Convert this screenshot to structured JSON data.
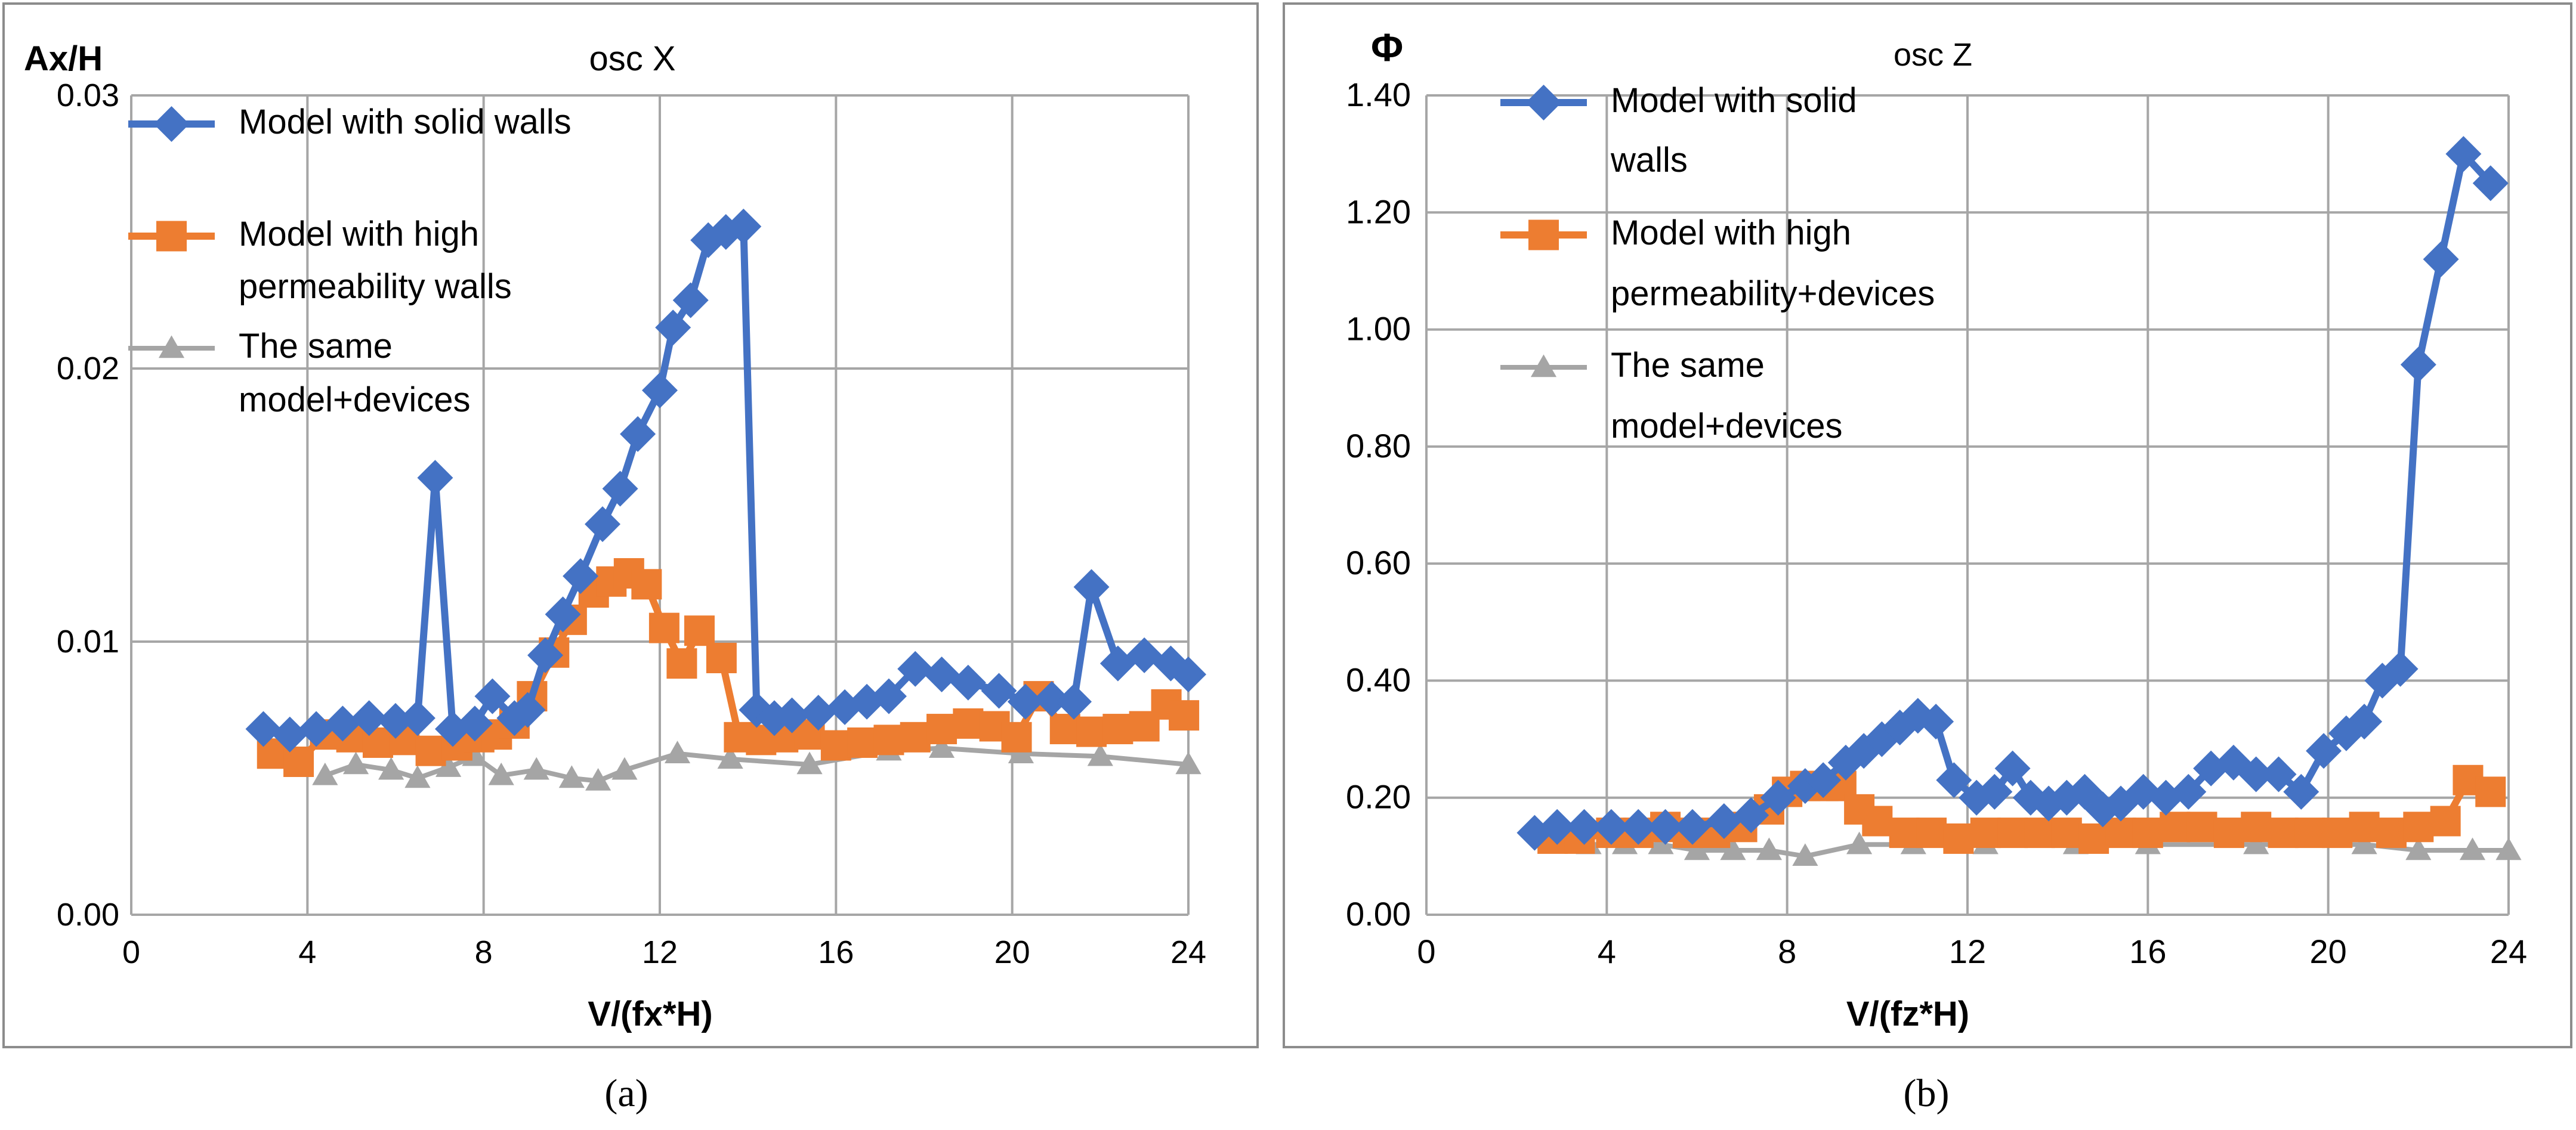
{
  "figure": {
    "label_a": "(a)",
    "label_b": "(b)"
  },
  "colors": {
    "solid": "#4472C4",
    "high": "#ED7D31",
    "same": "#A5A5A5",
    "grid": "#A6A6A6",
    "frame": "#8C8C8C",
    "text": "#000000"
  },
  "chart_data": [
    {
      "type": "line",
      "title": "osc X",
      "xlabel": "V/(fx*H)",
      "ylabel": "Ax/H",
      "xlim": [
        0,
        24
      ],
      "ylim": [
        0,
        0.03
      ],
      "xticks": [
        0,
        4,
        8,
        12,
        16,
        20,
        24
      ],
      "xtick_labels": [
        "0",
        "4",
        "8",
        "12",
        "16",
        "20",
        "24"
      ],
      "yticks": [
        0,
        0.01,
        0.02,
        0.03
      ],
      "ytick_labels": [
        "0.00",
        "0.01",
        "0.02",
        "0.03"
      ],
      "grid": true,
      "legend": "top-left",
      "series": [
        {
          "name": "Model with solid walls",
          "legend_lines": [
            "Model with solid walls"
          ],
          "marker": "diamond",
          "color": "#4472C4",
          "points": [
            [
              3.0,
              0.0068
            ],
            [
              3.6,
              0.0066
            ],
            [
              4.2,
              0.0068
            ],
            [
              4.8,
              0.007
            ],
            [
              5.4,
              0.0072
            ],
            [
              6.0,
              0.0071
            ],
            [
              6.5,
              0.0072
            ],
            [
              6.9,
              0.016
            ],
            [
              7.3,
              0.0068
            ],
            [
              7.8,
              0.007
            ],
            [
              8.2,
              0.008
            ],
            [
              8.7,
              0.0072
            ],
            [
              9.0,
              0.0075
            ],
            [
              9.4,
              0.0095
            ],
            [
              9.8,
              0.011
            ],
            [
              10.2,
              0.0124
            ],
            [
              10.7,
              0.0143
            ],
            [
              11.1,
              0.0156
            ],
            [
              11.5,
              0.0176
            ],
            [
              12.0,
              0.0192
            ],
            [
              12.3,
              0.0215
            ],
            [
              12.7,
              0.0225
            ],
            [
              13.1,
              0.0247
            ],
            [
              13.5,
              0.025
            ],
            [
              13.9,
              0.0252
            ],
            [
              14.2,
              0.0075
            ],
            [
              14.6,
              0.0072
            ],
            [
              15.0,
              0.0073
            ],
            [
              15.6,
              0.0074
            ],
            [
              16.2,
              0.0076
            ],
            [
              16.7,
              0.0078
            ],
            [
              17.2,
              0.008
            ],
            [
              17.8,
              0.009
            ],
            [
              18.4,
              0.0088
            ],
            [
              19.0,
              0.0085
            ],
            [
              19.7,
              0.0082
            ],
            [
              20.3,
              0.0078
            ],
            [
              20.9,
              0.0079
            ],
            [
              21.4,
              0.0078
            ],
            [
              21.8,
              0.012
            ],
            [
              22.4,
              0.0092
            ],
            [
              23.0,
              0.0095
            ],
            [
              23.6,
              0.0092
            ],
            [
              24.0,
              0.0088
            ]
          ]
        },
        {
          "name": "Model with high permeability walls",
          "legend_lines": [
            "Model with high",
            "permeability walls"
          ],
          "marker": "square",
          "color": "#ED7D31",
          "points": [
            [
              3.2,
              0.0059
            ],
            [
              3.8,
              0.0056
            ],
            [
              4.4,
              0.0066
            ],
            [
              5.0,
              0.0065
            ],
            [
              5.6,
              0.0063
            ],
            [
              6.2,
              0.0064
            ],
            [
              6.8,
              0.006
            ],
            [
              7.4,
              0.0062
            ],
            [
              7.9,
              0.0065
            ],
            [
              8.3,
              0.0066
            ],
            [
              8.7,
              0.007
            ],
            [
              9.1,
              0.008
            ],
            [
              9.6,
              0.0096
            ],
            [
              10.0,
              0.0108
            ],
            [
              10.5,
              0.0118
            ],
            [
              10.9,
              0.0122
            ],
            [
              11.3,
              0.0125
            ],
            [
              11.7,
              0.0121
            ],
            [
              12.1,
              0.0105
            ],
            [
              12.5,
              0.0092
            ],
            [
              12.9,
              0.0104
            ],
            [
              13.4,
              0.0094
            ],
            [
              13.8,
              0.0065
            ],
            [
              14.3,
              0.0064
            ],
            [
              14.8,
              0.0065
            ],
            [
              15.4,
              0.0066
            ],
            [
              16.0,
              0.0062
            ],
            [
              16.6,
              0.0063
            ],
            [
              17.2,
              0.0064
            ],
            [
              17.8,
              0.0065
            ],
            [
              18.4,
              0.0068
            ],
            [
              19.0,
              0.007
            ],
            [
              19.6,
              0.0069
            ],
            [
              20.1,
              0.0065
            ],
            [
              20.6,
              0.008
            ],
            [
              21.2,
              0.0068
            ],
            [
              21.8,
              0.0067
            ],
            [
              22.4,
              0.0068
            ],
            [
              23.0,
              0.0069
            ],
            [
              23.5,
              0.0077
            ],
            [
              23.9,
              0.0073
            ]
          ]
        },
        {
          "name": "The same model+devices",
          "legend_lines": [
            "The same",
            "model+devices"
          ],
          "marker": "triangle",
          "color": "#A5A5A5",
          "points": [
            [
              4.4,
              0.0051
            ],
            [
              5.1,
              0.0055
            ],
            [
              5.9,
              0.0053
            ],
            [
              6.5,
              0.005
            ],
            [
              7.2,
              0.0054
            ],
            [
              7.8,
              0.0058
            ],
            [
              8.4,
              0.0051
            ],
            [
              9.2,
              0.0053
            ],
            [
              10.0,
              0.005
            ],
            [
              10.6,
              0.0049
            ],
            [
              11.2,
              0.0053
            ],
            [
              12.4,
              0.0059
            ],
            [
              13.6,
              0.0057
            ],
            [
              15.4,
              0.0055
            ],
            [
              17.2,
              0.006
            ],
            [
              18.4,
              0.0061
            ],
            [
              20.2,
              0.0059
            ],
            [
              22.0,
              0.0058
            ],
            [
              24.0,
              0.0055
            ]
          ]
        }
      ]
    },
    {
      "type": "line",
      "title": "osc Z",
      "xlabel": "V/(fz*H)",
      "ylabel": "Φ",
      "xlim": [
        0,
        24
      ],
      "ylim": [
        0,
        1.4
      ],
      "xticks": [
        0,
        4,
        8,
        12,
        16,
        20,
        24
      ],
      "xtick_labels": [
        "0",
        "4",
        "8",
        "12",
        "16",
        "20",
        "24"
      ],
      "yticks": [
        0,
        0.2,
        0.4,
        0.6,
        0.8,
        1.0,
        1.2,
        1.4
      ],
      "ytick_labels": [
        "0.00",
        "0.20",
        "0.40",
        "0.60",
        "0.80",
        "1.00",
        "1.20",
        "1.40"
      ],
      "grid": true,
      "legend": "top-left",
      "series": [
        {
          "name": "Model with solid walls",
          "legend_lines": [
            "Model with solid",
            "walls"
          ],
          "marker": "diamond",
          "color": "#4472C4",
          "points": [
            [
              2.4,
              0.14
            ],
            [
              2.9,
              0.15
            ],
            [
              3.5,
              0.15
            ],
            [
              4.1,
              0.15
            ],
            [
              4.7,
              0.15
            ],
            [
              5.3,
              0.15
            ],
            [
              5.9,
              0.15
            ],
            [
              6.6,
              0.16
            ],
            [
              7.2,
              0.17
            ],
            [
              7.8,
              0.2
            ],
            [
              8.4,
              0.22
            ],
            [
              8.8,
              0.23
            ],
            [
              9.3,
              0.26
            ],
            [
              9.7,
              0.28
            ],
            [
              10.1,
              0.3
            ],
            [
              10.5,
              0.32
            ],
            [
              10.9,
              0.34
            ],
            [
              11.3,
              0.33
            ],
            [
              11.7,
              0.23
            ],
            [
              12.2,
              0.2
            ],
            [
              12.6,
              0.21
            ],
            [
              13.0,
              0.25
            ],
            [
              13.4,
              0.2
            ],
            [
              13.8,
              0.19
            ],
            [
              14.2,
              0.2
            ],
            [
              14.6,
              0.21
            ],
            [
              15.0,
              0.18
            ],
            [
              15.4,
              0.19
            ],
            [
              15.9,
              0.21
            ],
            [
              16.4,
              0.2
            ],
            [
              16.9,
              0.21
            ],
            [
              17.4,
              0.25
            ],
            [
              17.9,
              0.26
            ],
            [
              18.4,
              0.24
            ],
            [
              18.9,
              0.24
            ],
            [
              19.4,
              0.21
            ],
            [
              19.9,
              0.28
            ],
            [
              20.4,
              0.31
            ],
            [
              20.8,
              0.33
            ],
            [
              21.2,
              0.4
            ],
            [
              21.6,
              0.42
            ],
            [
              22.0,
              0.94
            ],
            [
              22.5,
              1.12
            ],
            [
              23.0,
              1.3
            ],
            [
              23.6,
              1.25
            ]
          ]
        },
        {
          "name": "Model with high permeability+devices",
          "legend_lines": [
            "Model with high",
            "permeability+devices"
          ],
          "marker": "square",
          "color": "#ED7D31",
          "points": [
            [
              2.8,
              0.13
            ],
            [
              3.4,
              0.13
            ],
            [
              4.1,
              0.14
            ],
            [
              4.7,
              0.14
            ],
            [
              5.3,
              0.15
            ],
            [
              5.8,
              0.14
            ],
            [
              6.4,
              0.14
            ],
            [
              7.0,
              0.15
            ],
            [
              7.6,
              0.18
            ],
            [
              8.0,
              0.21
            ],
            [
              8.4,
              0.22
            ],
            [
              8.8,
              0.22
            ],
            [
              9.2,
              0.22
            ],
            [
              9.6,
              0.18
            ],
            [
              10.0,
              0.16
            ],
            [
              10.6,
              0.14
            ],
            [
              11.2,
              0.14
            ],
            [
              11.8,
              0.13
            ],
            [
              12.4,
              0.14
            ],
            [
              13.0,
              0.14
            ],
            [
              13.6,
              0.14
            ],
            [
              14.2,
              0.14
            ],
            [
              14.8,
              0.13
            ],
            [
              15.4,
              0.14
            ],
            [
              16.0,
              0.14
            ],
            [
              16.6,
              0.15
            ],
            [
              17.2,
              0.15
            ],
            [
              17.8,
              0.14
            ],
            [
              18.4,
              0.15
            ],
            [
              19.0,
              0.14
            ],
            [
              19.6,
              0.14
            ],
            [
              20.2,
              0.14
            ],
            [
              20.8,
              0.15
            ],
            [
              21.4,
              0.14
            ],
            [
              22.0,
              0.15
            ],
            [
              22.6,
              0.16
            ],
            [
              23.1,
              0.23
            ],
            [
              23.6,
              0.21
            ]
          ]
        },
        {
          "name": "The same model+devices",
          "legend_lines": [
            "The same",
            "model+devices"
          ],
          "marker": "triangle",
          "color": "#A5A5A5",
          "points": [
            [
              3.6,
              0.12
            ],
            [
              4.4,
              0.12
            ],
            [
              5.2,
              0.12
            ],
            [
              6.0,
              0.11
            ],
            [
              6.8,
              0.11
            ],
            [
              7.6,
              0.11
            ],
            [
              8.4,
              0.1
            ],
            [
              9.6,
              0.12
            ],
            [
              10.8,
              0.12
            ],
            [
              12.4,
              0.12
            ],
            [
              14.4,
              0.12
            ],
            [
              16.0,
              0.12
            ],
            [
              18.4,
              0.12
            ],
            [
              20.8,
              0.12
            ],
            [
              22.0,
              0.11
            ],
            [
              23.2,
              0.11
            ],
            [
              24.0,
              0.11
            ]
          ]
        }
      ]
    }
  ]
}
